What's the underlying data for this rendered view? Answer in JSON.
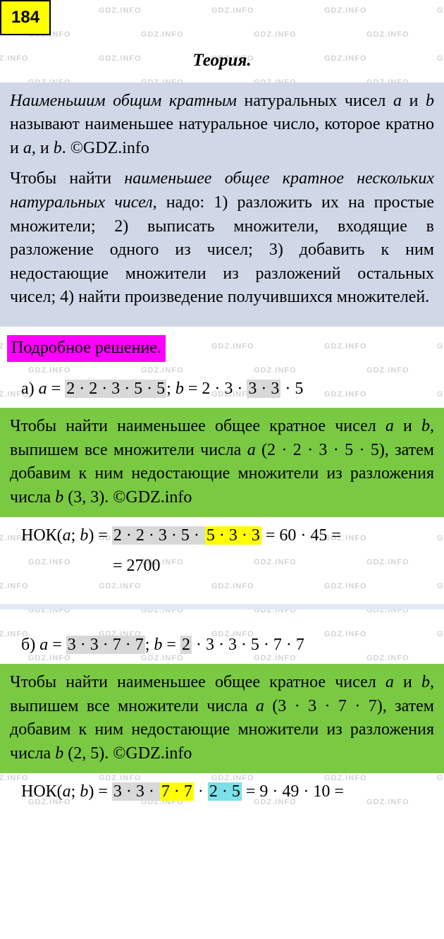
{
  "badge": "184",
  "theory_title": "Теория.",
  "watermark_text": "GDZ.INFO",
  "theory": {
    "p1_prefix": "Наименьшим общим кратным",
    "p1_mid1": " натуральных чисел ",
    "p1_var_a": "a",
    "p1_mid2": " и ",
    "p1_var_b": "b",
    "p1_mid3": " называют наименьшее натуральное число, которое кратно и ",
    "p1_mid4": ", и ",
    "p1_end": ". ©GDZ.info",
    "p2_prefix": "Чтобы найти ",
    "p2_italic": "наименьшее общее кратное нескольких натуральных чисел",
    "p2_rest": ", надо: 1) разложить их на простые множители; 2) выписать множители, входящие в разложение одного из чисел; 3) добавить к ним недостающие множители из разложений остальных чисел; 4) найти произведение получившихся множителей."
  },
  "solution_label": "Подробное решение.",
  "part_a": {
    "label": "а) ",
    "a_eq": "a",
    "eq": " = ",
    "a_factors_grey": "2 · 2 · 3 · 5 · 5",
    "sep": "; ",
    "b_eq": "b",
    "b_factors_pre": "2 · 3 · ",
    "b_factors_grey": "3 · 3",
    "b_factors_post": " · 5",
    "green_p1": "Чтобы найти наименьшее общее кратное чисел ",
    "green_p2": " и ",
    "green_p3": ", выпишем все множители числа ",
    "green_paren_a": " (2 · 2 · 3 · 5 · 5), затем добавим к ним недостающие множители из разложения числа ",
    "green_paren_b": " (3, 3). ©GDZ.info",
    "nok_label": "НОК(",
    "nok_sep": "; ",
    "nok_close": ") = ",
    "nok_grey": "2 · 2 · 3 · 5 · ",
    "nok_yellow": "5 · 3 · 3",
    "nok_result1": " = 60 · 45 =",
    "nok_result2": "= 2700"
  },
  "part_b": {
    "label": "б) ",
    "a_eq": "a",
    "eq": " = ",
    "a_factors_grey": "3 · 3 · 7 · 7",
    "sep": "; ",
    "b_eq": "b",
    "b_factors_pre": " = ",
    "b_factors_grey": "2",
    "b_factors_post": " · 3 · 3 · 5 · 7 · 7",
    "green_p1": "Чтобы найти наименьшее общее кратное чисел ",
    "green_p2": " и ",
    "green_p3": ", выпишем все множители числа ",
    "green_paren_a": " (3 · 3 · 7 · 7), затем добавим к ним недостающие множители из разложения числа ",
    "green_paren_b": " (2, 5). ©GDZ.info",
    "nok_label": "НОК(",
    "nok_sep": "; ",
    "nok_close": ") = ",
    "nok_grey": "3 · 3 · ",
    "nok_yellow": "7 · 7",
    "nok_dot": " · ",
    "nok_cyan": "2 · 5",
    "nok_result1": " = 9 · 49 · 10 ="
  },
  "colors": {
    "badge_bg": "#ffff00",
    "theory_bg": "#d0d8e8",
    "solution_bg": "#ff00ff",
    "green_bg": "#7ac943",
    "grey_hl": "#d8d8d8",
    "yellow_hl": "#ffff00",
    "cyan_hl": "#7de0e8",
    "watermark": "rgba(120,130,140,0.35)"
  }
}
